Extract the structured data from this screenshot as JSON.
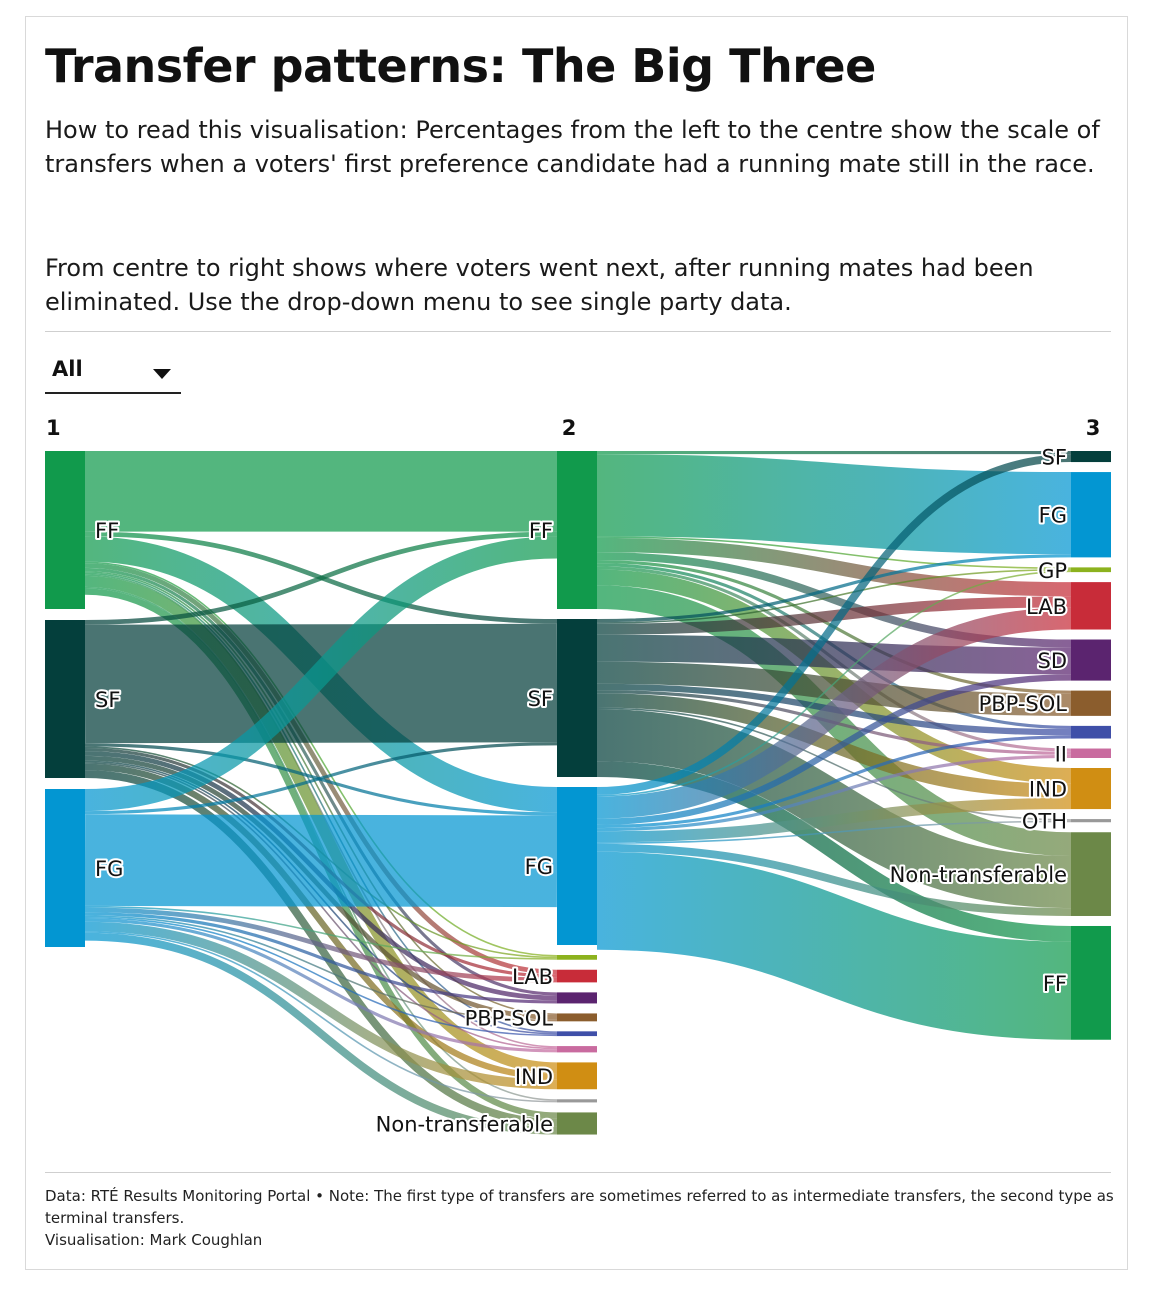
{
  "title": "Transfer patterns: The Big Three",
  "description_1": "How to read this visualisation: Percentages from the left to the centre show the scale of transfers when a voters' first preference candidate had a running mate still in the race.",
  "description_2": "From centre to right shows where voters went next, after running mates had been eliminated. Use the drop-down menu to see single party data.",
  "dropdown": {
    "selected": "All"
  },
  "footer": {
    "note": "Data: RTÉ Results Monitoring Portal • Note: The first type of transfers are sometimes referred to as intermediate transfers, the second type as terminal transfers.",
    "credit": "Visualisation: Mark Coughlan"
  },
  "chart_data": {
    "type": "sankey",
    "stages": [
      "1",
      "2",
      "3"
    ],
    "colors": {
      "FF": "#119a4c",
      "SF": "#043f3c",
      "FG": "#0396d2",
      "GP": "#8cb21e",
      "LAB": "#c82c39",
      "SD": "#5b246f",
      "PBP-SOL": "#8b5d2d",
      "AON": "#3f4fa8",
      "II": "#c96b9f",
      "IND": "#d08e13",
      "OTH": "#999999",
      "Non-transferable": "#6c8848"
    },
    "nodes": [
      {
        "id": "L_FF",
        "stage": 1,
        "party": "FF",
        "label": "FF",
        "value": 100
      },
      {
        "id": "L_SF",
        "stage": 1,
        "party": "SF",
        "label": "SF",
        "value": 100
      },
      {
        "id": "L_FG",
        "stage": 1,
        "party": "FG",
        "label": "FG",
        "value": 100
      },
      {
        "id": "M_FF",
        "stage": 2,
        "party": "FF",
        "label": "FF",
        "value": 100
      },
      {
        "id": "M_SF",
        "stage": 2,
        "party": "SF",
        "label": "SF",
        "value": 100
      },
      {
        "id": "M_FG",
        "stage": 2,
        "party": "FG",
        "label": "FG",
        "value": 100
      },
      {
        "id": "M_GP",
        "stage": 2,
        "party": "GP",
        "label": "",
        "value": 3
      },
      {
        "id": "M_LAB",
        "stage": 2,
        "party": "LAB",
        "label": "LAB",
        "value": 8
      },
      {
        "id": "M_SD",
        "stage": 2,
        "party": "SD",
        "label": "",
        "value": 7
      },
      {
        "id": "M_PBP",
        "stage": 2,
        "party": "PBP-SOL",
        "label": "PBP-SOL",
        "value": 5
      },
      {
        "id": "M_AON",
        "stage": 2,
        "party": "AON",
        "label": "",
        "value": 3
      },
      {
        "id": "M_II",
        "stage": 2,
        "party": "II",
        "label": "",
        "value": 4
      },
      {
        "id": "M_IND",
        "stage": 2,
        "party": "IND",
        "label": "IND",
        "value": 17
      },
      {
        "id": "M_OTH",
        "stage": 2,
        "party": "OTH",
        "label": "",
        "value": 2
      },
      {
        "id": "M_NT",
        "stage": 2,
        "party": "Non-transferable",
        "label": "Non-transferable",
        "value": 14
      },
      {
        "id": "R_SF",
        "stage": 3,
        "party": "SF",
        "label": "SF",
        "value": 7
      },
      {
        "id": "R_FG",
        "stage": 3,
        "party": "FG",
        "label": "FG",
        "value": 54
      },
      {
        "id": "R_GP",
        "stage": 3,
        "party": "GP",
        "label": "GP",
        "value": 3
      },
      {
        "id": "R_LAB",
        "stage": 3,
        "party": "LAB",
        "label": "LAB",
        "value": 30
      },
      {
        "id": "R_SD",
        "stage": 3,
        "party": "SD",
        "label": "SD",
        "value": 26
      },
      {
        "id": "R_PBP",
        "stage": 3,
        "party": "PBP-SOL",
        "label": "PBP-SOL",
        "value": 16
      },
      {
        "id": "R_AON",
        "stage": 3,
        "party": "AON",
        "label": "",
        "value": 8
      },
      {
        "id": "R_II",
        "stage": 3,
        "party": "II",
        "label": "II",
        "value": 6
      },
      {
        "id": "R_IND",
        "stage": 3,
        "party": "IND",
        "label": "IND",
        "value": 26
      },
      {
        "id": "R_OTH",
        "stage": 3,
        "party": "OTH",
        "label": "OTH",
        "value": 2
      },
      {
        "id": "R_NT",
        "stage": 3,
        "party": "Non-transferable",
        "label": "Non-transferable",
        "value": 53
      },
      {
        "id": "R_FF",
        "stage": 3,
        "party": "FF",
        "label": "FF",
        "value": 72
      }
    ],
    "links": [
      {
        "source": "L_FF",
        "target": "M_FF",
        "value": 51
      },
      {
        "source": "L_FF",
        "target": "M_SF",
        "value": 3
      },
      {
        "source": "L_FF",
        "target": "M_FG",
        "value": 16
      },
      {
        "source": "L_FF",
        "target": "M_GP",
        "value": 1
      },
      {
        "source": "L_FF",
        "target": "M_LAB",
        "value": 3
      },
      {
        "source": "L_FF",
        "target": "M_SD",
        "value": 2
      },
      {
        "source": "L_FF",
        "target": "M_PBP",
        "value": 1
      },
      {
        "source": "L_FF",
        "target": "M_AON",
        "value": 1
      },
      {
        "source": "L_FF",
        "target": "M_II",
        "value": 1
      },
      {
        "source": "L_FF",
        "target": "M_IND",
        "value": 7
      },
      {
        "source": "L_FF",
        "target": "M_OTH",
        "value": 1
      },
      {
        "source": "L_FF",
        "target": "M_NT",
        "value": 4
      },
      {
        "source": "L_SF",
        "target": "M_FF",
        "value": 3
      },
      {
        "source": "L_SF",
        "target": "M_SF",
        "value": 75
      },
      {
        "source": "L_SF",
        "target": "M_FG",
        "value": 2
      },
      {
        "source": "L_SF",
        "target": "M_GP",
        "value": 1
      },
      {
        "source": "L_SF",
        "target": "M_LAB",
        "value": 2
      },
      {
        "source": "L_SF",
        "target": "M_SD",
        "value": 3
      },
      {
        "source": "L_SF",
        "target": "M_PBP",
        "value": 3
      },
      {
        "source": "L_SF",
        "target": "M_AON",
        "value": 1
      },
      {
        "source": "L_SF",
        "target": "M_II",
        "value": 1
      },
      {
        "source": "L_SF",
        "target": "M_IND",
        "value": 4
      },
      {
        "source": "L_SF",
        "target": "M_NT",
        "value": 5
      },
      {
        "source": "L_FG",
        "target": "M_FF",
        "value": 14
      },
      {
        "source": "L_FG",
        "target": "M_SF",
        "value": 2
      },
      {
        "source": "L_FG",
        "target": "M_FG",
        "value": 58
      },
      {
        "source": "L_FG",
        "target": "M_GP",
        "value": 1
      },
      {
        "source": "L_FG",
        "target": "M_LAB",
        "value": 3
      },
      {
        "source": "L_FG",
        "target": "M_SD",
        "value": 2
      },
      {
        "source": "L_FG",
        "target": "M_PBP",
        "value": 1
      },
      {
        "source": "L_FG",
        "target": "M_AON",
        "value": 1
      },
      {
        "source": "L_FG",
        "target": "M_II",
        "value": 2
      },
      {
        "source": "L_FG",
        "target": "M_IND",
        "value": 6
      },
      {
        "source": "L_FG",
        "target": "M_OTH",
        "value": 1
      },
      {
        "source": "L_FG",
        "target": "M_NT",
        "value": 5
      },
      {
        "source": "M_FF",
        "target": "R_SF",
        "value": 2
      },
      {
        "source": "M_FF",
        "target": "R_FG",
        "value": 52
      },
      {
        "source": "M_FF",
        "target": "R_GP",
        "value": 1
      },
      {
        "source": "M_FF",
        "target": "R_LAB",
        "value": 9
      },
      {
        "source": "M_FF",
        "target": "R_SD",
        "value": 5
      },
      {
        "source": "M_FF",
        "target": "R_PBP",
        "value": 2
      },
      {
        "source": "M_FF",
        "target": "R_AON",
        "value": 2
      },
      {
        "source": "M_FF",
        "target": "R_II",
        "value": 2
      },
      {
        "source": "M_FF",
        "target": "R_IND",
        "value": 10
      },
      {
        "source": "M_FF",
        "target": "R_NT",
        "value": 15
      },
      {
        "source": "M_SF",
        "target": "R_FG",
        "value": 2
      },
      {
        "source": "M_SF",
        "target": "R_GP",
        "value": 1
      },
      {
        "source": "M_SF",
        "target": "R_LAB",
        "value": 7
      },
      {
        "source": "M_SF",
        "target": "R_SD",
        "value": 17
      },
      {
        "source": "M_SF",
        "target": "R_PBP",
        "value": 14
      },
      {
        "source": "M_SF",
        "target": "R_AON",
        "value": 4
      },
      {
        "source": "M_SF",
        "target": "R_II",
        "value": 2
      },
      {
        "source": "M_SF",
        "target": "R_IND",
        "value": 9
      },
      {
        "source": "M_SF",
        "target": "R_OTH",
        "value": 1
      },
      {
        "source": "M_SF",
        "target": "R_NT",
        "value": 33
      },
      {
        "source": "M_SF",
        "target": "R_FF",
        "value": 10
      },
      {
        "source": "M_FG",
        "target": "R_SF",
        "value": 5
      },
      {
        "source": "M_FG",
        "target": "R_GP",
        "value": 1
      },
      {
        "source": "M_FG",
        "target": "R_LAB",
        "value": 14
      },
      {
        "source": "M_FG",
        "target": "R_SD",
        "value": 4
      },
      {
        "source": "M_FG",
        "target": "R_AON",
        "value": 2
      },
      {
        "source": "M_FG",
        "target": "R_II",
        "value": 2
      },
      {
        "source": "M_FG",
        "target": "R_IND",
        "value": 7
      },
      {
        "source": "M_FG",
        "target": "R_OTH",
        "value": 1
      },
      {
        "source": "M_FG",
        "target": "R_NT",
        "value": 5
      },
      {
        "source": "M_FG",
        "target": "R_FF",
        "value": 62
      }
    ]
  }
}
